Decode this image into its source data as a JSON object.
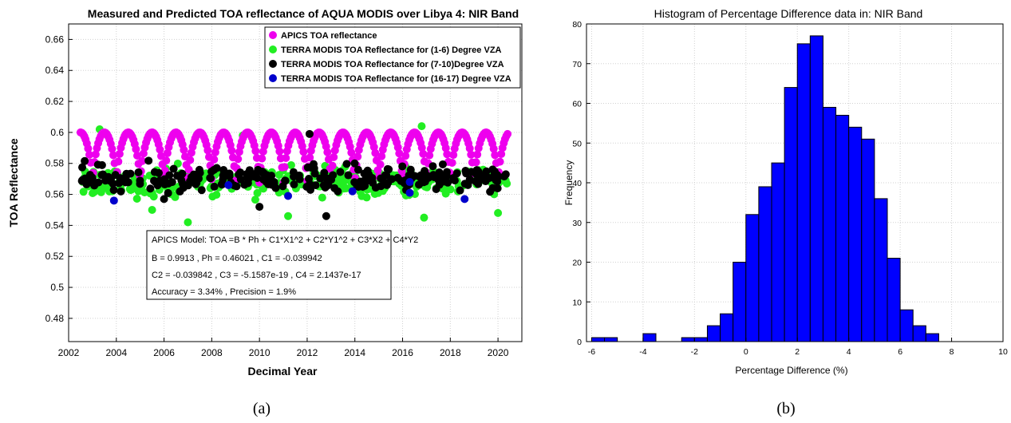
{
  "chart_data": [
    {
      "type": "scatter",
      "title": "Measured and Predicted TOA reflectance of AQUA MODIS over Libya 4: NIR Band",
      "xlabel": "Decimal Year",
      "ylabel": "TOA Reflectance",
      "xlim": [
        2002,
        2021
      ],
      "ylim": [
        0.465,
        0.67
      ],
      "xticks": [
        2002,
        2004,
        2006,
        2008,
        2010,
        2012,
        2014,
        2016,
        2018,
        2020
      ],
      "yticks": [
        0.48,
        0.5,
        0.52,
        0.54,
        0.56,
        0.58,
        0.6,
        0.62,
        0.64,
        0.66
      ],
      "grid": true,
      "legend_position": "top-right",
      "series": [
        {
          "name": "APICS TOA reflectance",
          "color": "#ee00ee",
          "model": "seasonal",
          "x_range": [
            2002.5,
            2020.4
          ],
          "min": 0.566,
          "max": 0.6,
          "period_years": 1.0,
          "count": 340
        },
        {
          "name": "TERRA MODIS TOA Reflectance for (1-6) Degree VZA",
          "color": "#22ee22",
          "model": "scattered",
          "x_range": [
            2002.5,
            2020.4
          ],
          "center": 0.568,
          "spread": 0.012,
          "count": 300,
          "outliers": [
            [
              2003.3,
              0.602
            ],
            [
              2007.0,
              0.542
            ],
            [
              2016.8,
              0.604
            ],
            [
              2009.3,
              0.598
            ],
            [
              2020.0,
              0.548
            ],
            [
              2016.9,
              0.545
            ],
            [
              2005.5,
              0.55
            ],
            [
              2011.2,
              0.546
            ]
          ]
        },
        {
          "name": "TERRA MODIS TOA Reflectance for (7-10)Degree VZA",
          "color": "#000000",
          "model": "scattered",
          "x_range": [
            2002.5,
            2020.4
          ],
          "center": 0.571,
          "spread": 0.01,
          "count": 260,
          "outliers": [
            [
              2012.1,
              0.599
            ],
            [
              2012.8,
              0.546
            ],
            [
              2010.0,
              0.552
            ],
            [
              2006.0,
              0.557
            ]
          ]
        },
        {
          "name": "TERRA MODIS TOA Reflectance for (16-17) Degree VZA",
          "color": "#0000cc",
          "model": "points",
          "points": [
            [
              2003.9,
              0.556
            ],
            [
              2008.7,
              0.566
            ],
            [
              2011.2,
              0.559
            ],
            [
              2013.9,
              0.562
            ],
            [
              2016.3,
              0.568
            ],
            [
              2016.3,
              0.561
            ],
            [
              2018.6,
              0.557
            ]
          ]
        }
      ],
      "annotation": {
        "line1": "APICS Model: TOA =B * Ph + C1*X1^2 + C2*Y1^2 + C3*X2 + C4*Y2",
        "line2": "B  = 0.9913 ,  Ph  = 0.46021 , C1 = -0.039942",
        "line3": "C2  = -0.039842 , C3 = -5.1587e-19 ,  C4  = 2.1437e-17",
        "line4": "Accuracy = 3.34% ,  Precision = 1.9%"
      },
      "caption": "(a)"
    },
    {
      "type": "bar",
      "title": "Histogram of Percentage Difference data in: NIR Band",
      "xlabel": "Percentage Difference (%)",
      "ylabel": "Frequency",
      "xlim": [
        -6.2,
        10
      ],
      "ylim": [
        0,
        80
      ],
      "xticks": [
        -6,
        -4,
        -2,
        0,
        2,
        4,
        6,
        8,
        10
      ],
      "yticks": [
        0,
        10,
        20,
        30,
        40,
        50,
        60,
        70,
        80
      ],
      "grid": true,
      "color": "#0000ff",
      "bin_width": 0.5,
      "bin_starts": [
        -6,
        -5.5,
        -5,
        -4.5,
        -4,
        -3.5,
        -3,
        -2.5,
        -2,
        -1.5,
        -1,
        -0.5,
        0,
        0.5,
        1,
        1.5,
        2,
        2.5,
        3,
        3.5,
        4,
        4.5,
        5,
        5.5,
        6,
        6.5,
        7,
        7.5
      ],
      "values": [
        1,
        1,
        0,
        0,
        2,
        0,
        0,
        1,
        1,
        4,
        7,
        20,
        32,
        39,
        45,
        64,
        75,
        77,
        59,
        57,
        54,
        51,
        36,
        21,
        8,
        4,
        2,
        0
      ],
      "caption": "(b)"
    }
  ]
}
